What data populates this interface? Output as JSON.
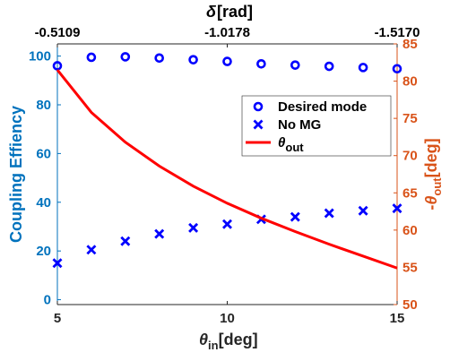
{
  "chart_data": {
    "type": "scatter",
    "title": "",
    "xlabel": "θin[deg]",
    "xlabel_parts": {
      "base": "θ",
      "sub": "in",
      "unit": "[deg]"
    },
    "top_xlabel": "δ[rad]",
    "top_ticks": [
      "-0.5109",
      "-1.0178",
      "-1.5170"
    ],
    "ylabel_left": "Coupling Effiency",
    "ylabel_right": "-θout[deg]",
    "ylabel_right_parts": {
      "prefix": "-",
      "base": "θ",
      "sub": "out",
      "unit": "[deg]"
    },
    "xlim": [
      5,
      15
    ],
    "ylim_left": [
      -2,
      105
    ],
    "ylim_right": [
      50,
      85
    ],
    "x_ticks": [
      5,
      10,
      15
    ],
    "y_ticks_left": [
      0,
      20,
      40,
      60,
      80,
      100
    ],
    "y_ticks_right": [
      50,
      55,
      60,
      65,
      70,
      75,
      80,
      85
    ],
    "grid": false,
    "legend_position": "center-right",
    "x": [
      5,
      6,
      7,
      8,
      9,
      10,
      11,
      12,
      13,
      14,
      15
    ],
    "series": [
      {
        "name": "Desired mode",
        "marker": "circle",
        "axis": "left",
        "color": "#0000ff",
        "values": [
          96,
          99.5,
          99.7,
          99.2,
          98.5,
          97.8,
          96.8,
          96.3,
          95.8,
          95.3,
          94.8
        ]
      },
      {
        "name": "No MG",
        "marker": "x",
        "axis": "left",
        "color": "#0000ff",
        "values": [
          15,
          20.5,
          24,
          27,
          29.5,
          31,
          33,
          34,
          35.5,
          36.5,
          37.5
        ]
      },
      {
        "name": "θout",
        "name_parts": {
          "base": "θ",
          "sub": "out"
        },
        "marker": "line",
        "axis": "right",
        "color": "#ff0000",
        "values": [
          81.5,
          75.8,
          71.8,
          68.6,
          65.9,
          63.6,
          61.6,
          59.8,
          58.1,
          56.5,
          54.9
        ]
      }
    ]
  },
  "colors": {
    "left_axis": "#0072bd",
    "right_axis": "#d95319",
    "series_blue": "#0000ff",
    "series_red": "#ff0000"
  }
}
